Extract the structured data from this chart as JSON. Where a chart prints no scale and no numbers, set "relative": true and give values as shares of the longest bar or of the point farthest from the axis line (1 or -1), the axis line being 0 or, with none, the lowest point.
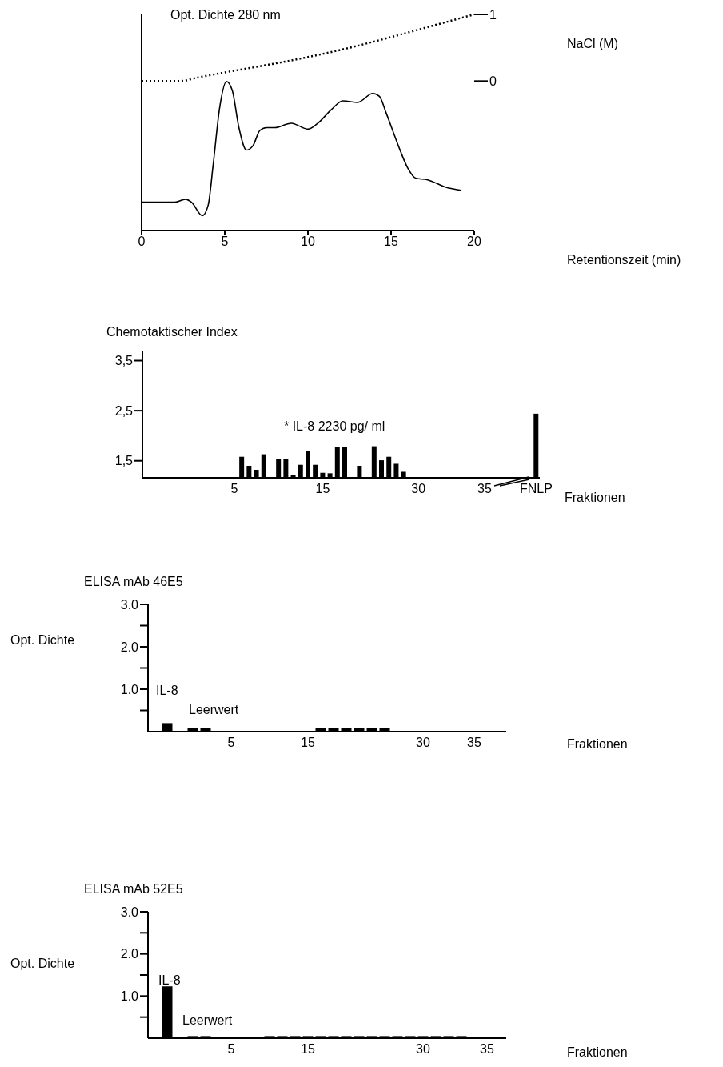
{
  "chart_data": [
    {
      "type": "line",
      "ylabel": "Opt. Dichte 280 nm",
      "y2label": "NaCl (M)",
      "xlabel": "Retentionszeit (min)",
      "relative": true,
      "marker": "none",
      "xlim": [
        0,
        20
      ],
      "xticks": [
        0,
        5,
        10,
        15,
        20
      ],
      "y2lim": [
        -2.24,
        1
      ],
      "y2ticks": [
        0,
        1
      ],
      "series": [
        {
          "color": "#000000",
          "line_style": "solid",
          "x": [
            0,
            2,
            2.64,
            3,
            3.65,
            4,
            4.3,
            4.7,
            5.1,
            5.45,
            5.85,
            6.3,
            6.7,
            7.1,
            7.5,
            8,
            9,
            10,
            10.6,
            11.4,
            12.1,
            13,
            13.9,
            14.3,
            14.7,
            15.4,
            16,
            16.5,
            17.2,
            18.3,
            19.2
          ],
          "values": [
            0.19,
            0.19,
            0.21,
            0.19,
            0.1,
            0.17,
            0.44,
            0.83,
            1,
            0.94,
            0.69,
            0.54,
            0.57,
            0.67,
            0.69,
            0.69,
            0.72,
            0.68,
            0.72,
            0.81,
            0.87,
            0.86,
            0.92,
            0.9,
            0.79,
            0.58,
            0.42,
            0.35,
            0.34,
            0.29,
            0.27
          ]
        },
        {
          "color": "#000000",
          "line_style": "dotted",
          "axis": "y2",
          "x": [
            0,
            2.3,
            3.5,
            5,
            7.5,
            10,
            12.5,
            15,
            17.5,
            20
          ],
          "values": [
            0,
            0,
            0.06,
            0.13,
            0.24,
            0.36,
            0.5,
            0.66,
            0.83,
            1
          ]
        }
      ]
    },
    {
      "type": "bar",
      "ylabel": "Chemotaktischer Index",
      "xlabel": "Fraktionen",
      "annotations": [
        "* IL-8 2230 pg/ ml"
      ],
      "color": "#000000",
      "ylim": [
        1.16,
        3.7
      ],
      "yticks": [
        {
          "value": 1.5,
          "label": "1,5"
        },
        {
          "value": 2.5,
          "label": "2,5"
        },
        {
          "value": 3.5,
          "label": "3,5"
        }
      ],
      "categories": [
        null,
        null,
        null,
        null,
        null,
        null,
        null,
        null,
        null,
        null,
        null,
        null,
        "5",
        null,
        null,
        null,
        null,
        null,
        null,
        null,
        null,
        null,
        null,
        null,
        "15",
        null,
        null,
        null,
        null,
        null,
        null,
        null,
        null,
        null,
        null,
        null,
        null,
        "30",
        null,
        null,
        null,
        null,
        null,
        null,
        null,
        null,
        "35",
        null,
        null,
        null,
        null,
        null,
        null,
        "FNLP"
      ],
      "values": [
        null,
        null,
        null,
        null,
        null,
        null,
        null,
        null,
        null,
        null,
        null,
        null,
        null,
        1.58,
        1.4,
        1.32,
        1.63,
        null,
        1.54,
        1.54,
        1.21,
        1.42,
        1.7,
        1.42,
        1.26,
        1.25,
        1.77,
        1.78,
        null,
        1.4,
        null,
        1.79,
        1.51,
        1.58,
        1.44,
        1.28,
        null,
        null,
        null,
        null,
        null,
        null,
        null,
        null,
        null,
        null,
        null,
        null,
        null,
        null,
        null,
        null,
        null,
        2.44
      ]
    },
    {
      "type": "bar",
      "title": "ELISA mAb 46E5",
      "ylabel": "Opt. Dichte",
      "xlabel": "Fraktionen",
      "annotations": [
        "IL-8",
        "Leerwert"
      ],
      "color": "#000000",
      "ylim": [
        0,
        3
      ],
      "yticks": [
        {
          "value": 0.5,
          "label": null
        },
        {
          "value": 1,
          "label": "1.0"
        },
        {
          "value": 1.5,
          "label": null
        },
        {
          "value": 2,
          "label": "2.0"
        },
        {
          "value": 2.5,
          "label": null
        },
        {
          "value": 3,
          "label": "3.0"
        }
      ],
      "categories": [
        null,
        null,
        null,
        null,
        null,
        null,
        "5",
        null,
        null,
        null,
        null,
        null,
        "15",
        null,
        null,
        null,
        null,
        null,
        null,
        null,
        null,
        "30",
        null,
        null,
        null,
        "35",
        null,
        null
      ],
      "values": [
        null,
        0.2,
        null,
        0.08,
        0.08,
        null,
        null,
        null,
        null,
        null,
        null,
        null,
        null,
        0.08,
        0.08,
        0.08,
        0.08,
        0.08,
        0.08,
        null,
        null,
        null,
        null,
        null,
        null,
        null,
        null,
        null
      ]
    },
    {
      "type": "bar",
      "title": "ELISA mAb 52E5",
      "ylabel": "Opt. Dichte",
      "xlabel": "Fraktionen",
      "annotations": [
        "IL-8",
        "Leerwert"
      ],
      "color": "#000000",
      "ylim": [
        0,
        3
      ],
      "yticks": [
        {
          "value": 0.5,
          "label": null
        },
        {
          "value": 1,
          "label": "1.0"
        },
        {
          "value": 1.5,
          "label": null
        },
        {
          "value": 2,
          "label": "2.0"
        },
        {
          "value": 2.5,
          "label": null
        },
        {
          "value": 3,
          "label": "3.0"
        }
      ],
      "categories": [
        null,
        null,
        null,
        null,
        null,
        null,
        "5",
        null,
        null,
        null,
        null,
        null,
        "15",
        null,
        null,
        null,
        null,
        null,
        null,
        null,
        null,
        "30",
        null,
        null,
        null,
        null,
        "35",
        null
      ],
      "values": [
        null,
        1.23,
        null,
        0.05,
        0.05,
        null,
        null,
        null,
        null,
        0.05,
        0.05,
        0.05,
        0.05,
        0.05,
        0.05,
        0.05,
        0.05,
        0.05,
        0.05,
        0.05,
        0.05,
        0.05,
        0.05,
        0.05,
        0.05,
        null,
        null,
        null
      ]
    }
  ]
}
